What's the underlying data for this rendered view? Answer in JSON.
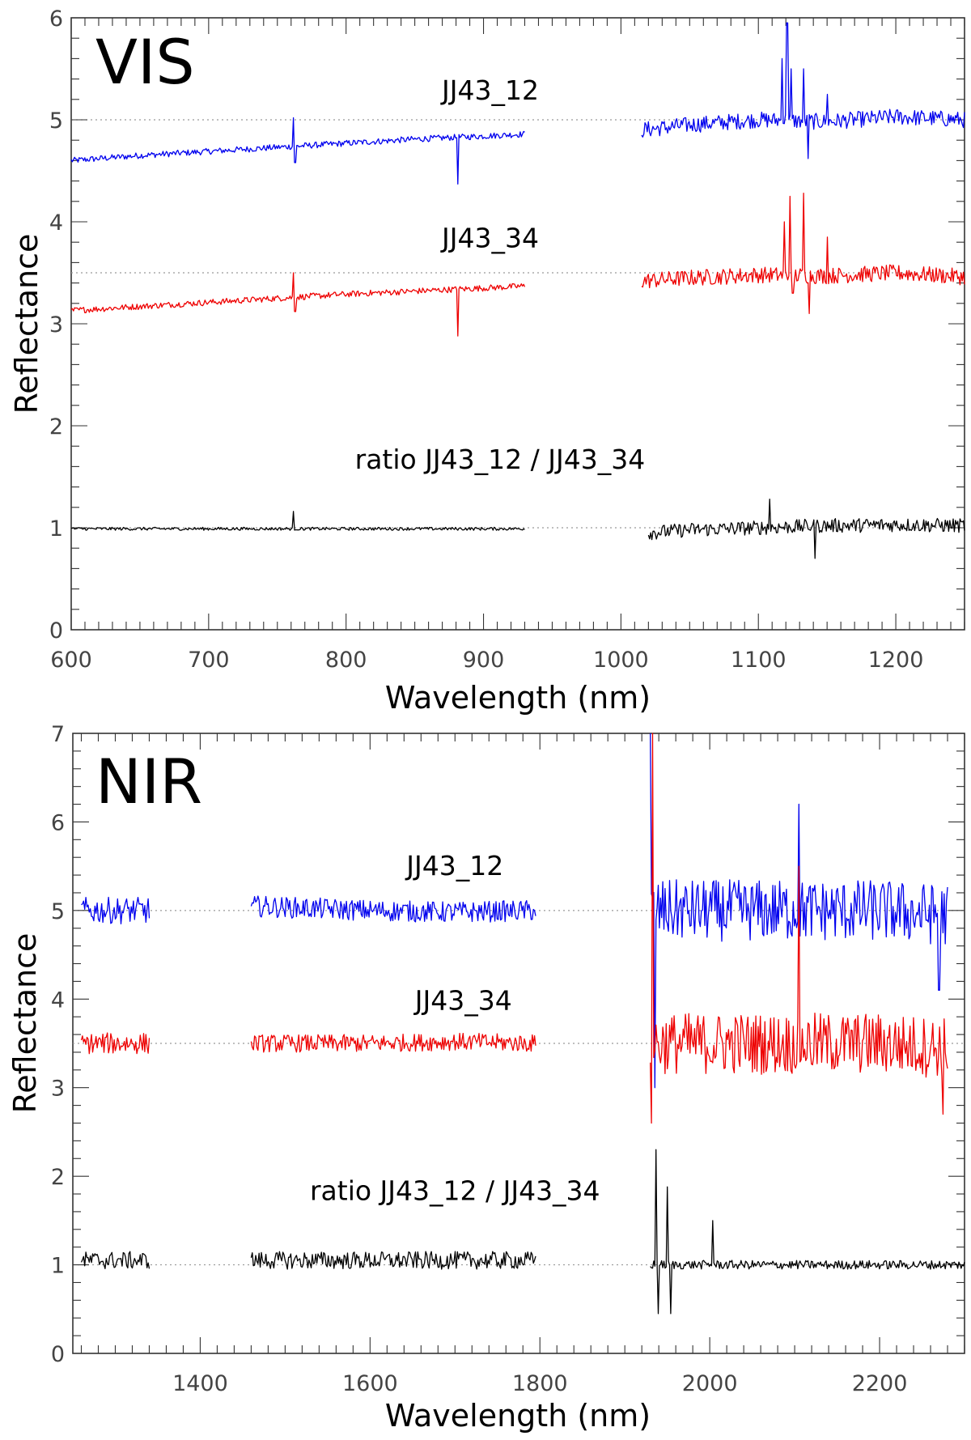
{
  "chart_data": [
    {
      "type": "line",
      "panel_label": "VIS",
      "xlabel": "Wavelength (nm)",
      "ylabel": "Reflectance",
      "xlim": [
        600,
        1250
      ],
      "ylim": [
        0,
        6
      ],
      "x_ticks": [
        600,
        700,
        800,
        900,
        1000,
        1100,
        1200
      ],
      "y_ticks": [
        0,
        1,
        2,
        3,
        4,
        5,
        6
      ],
      "reference_lines": [
        1,
        3.5,
        5
      ],
      "grid": false,
      "series": [
        {
          "name": "JJ43_12",
          "color": "#0000ee",
          "segments": [
            {
              "x": [
                600,
                650,
                700,
                750,
                800,
                850,
                900,
                930
              ],
              "y": [
                4.6,
                4.65,
                4.69,
                4.73,
                4.77,
                4.81,
                4.84,
                4.86
              ],
              "noise": 0.03
            },
            {
              "x": [
                1015,
                1050,
                1100,
                1150,
                1200,
                1250
              ],
              "y": [
                4.9,
                4.95,
                5.0,
                4.98,
                5.03,
                5.0
              ],
              "noise": 0.08
            }
          ],
          "spikes": [
            {
              "x": 762,
              "y": 5.02
            },
            {
              "x": 763,
              "y": 4.58
            },
            {
              "x": 881,
              "y": 4.37
            },
            {
              "x": 1117,
              "y": 5.6
            },
            {
              "x": 1121,
              "y": 5.95
            },
            {
              "x": 1124,
              "y": 5.5
            },
            {
              "x": 1133,
              "y": 5.5
            },
            {
              "x": 1136,
              "y": 4.62
            },
            {
              "x": 1150,
              "y": 5.25
            }
          ]
        },
        {
          "name": "JJ43_34",
          "color": "#ee0000",
          "segments": [
            {
              "x": [
                600,
                650,
                700,
                750,
                800,
                850,
                900,
                930
              ],
              "y": [
                3.13,
                3.17,
                3.21,
                3.25,
                3.29,
                3.32,
                3.35,
                3.37
              ],
              "noise": 0.03
            },
            {
              "x": [
                1015,
                1050,
                1100,
                1150,
                1200,
                1250
              ],
              "y": [
                3.42,
                3.45,
                3.48,
                3.47,
                3.5,
                3.46
              ],
              "noise": 0.08
            }
          ],
          "spikes": [
            {
              "x": 762,
              "y": 3.5
            },
            {
              "x": 763,
              "y": 3.12
            },
            {
              "x": 881,
              "y": 2.88
            },
            {
              "x": 1119,
              "y": 4.0
            },
            {
              "x": 1123,
              "y": 4.25
            },
            {
              "x": 1125,
              "y": 3.3
            },
            {
              "x": 1133,
              "y": 4.28
            },
            {
              "x": 1137,
              "y": 3.1
            },
            {
              "x": 1150,
              "y": 3.85
            }
          ]
        },
        {
          "name": "ratio JJ43_12 / JJ43_34",
          "color": "#000000",
          "segments": [
            {
              "x": [
                600,
                700,
                800,
                900,
                930
              ],
              "y": [
                0.99,
                0.99,
                0.99,
                0.99,
                0.99
              ],
              "noise": 0.015
            },
            {
              "x": [
                1020,
                1050,
                1100,
                1150,
                1200,
                1250
              ],
              "y": [
                0.95,
                0.98,
                1.0,
                1.02,
                1.03,
                1.02
              ],
              "noise": 0.07
            }
          ],
          "spikes": [
            {
              "x": 762,
              "y": 1.16
            },
            {
              "x": 1141,
              "y": 0.7
            },
            {
              "x": 1108,
              "y": 1.28
            }
          ]
        }
      ],
      "annotations": [
        {
          "text": "JJ43_12",
          "x": 905,
          "y": 5.2
        },
        {
          "text": "JJ43_34",
          "x": 905,
          "y": 3.75
        },
        {
          "text": "ratio JJ43_12 / JJ43_34",
          "x": 912,
          "y": 1.58
        }
      ]
    },
    {
      "type": "line",
      "panel_label": "NIR",
      "xlabel": "Wavelength (nm)",
      "ylabel": "Reflectance",
      "xlim": [
        1250,
        2300
      ],
      "ylim": [
        0,
        7
      ],
      "x_ticks": [
        1400,
        1600,
        1800,
        2000,
        2200
      ],
      "y_ticks": [
        0,
        1,
        2,
        3,
        4,
        5,
        6,
        7
      ],
      "reference_lines": [
        1,
        3.5,
        5
      ],
      "grid": false,
      "series": [
        {
          "name": "JJ43_12",
          "color": "#0000ee",
          "segments": [
            {
              "x": [
                1260,
                1300,
                1340
              ],
              "y": [
                5.0,
                5.0,
                5.0
              ],
              "noise": 0.15
            },
            {
              "x": [
                1460,
                1600,
                1700,
                1795
              ],
              "y": [
                5.05,
                5.0,
                4.98,
                5.0
              ],
              "noise": 0.12
            },
            {
              "x": [
                1930,
                2000,
                2100,
                2200,
                2280
              ],
              "y": [
                5.0,
                5.0,
                5.0,
                5.0,
                4.95
              ],
              "noise": 0.35
            }
          ],
          "spikes": [
            {
              "x": 1930,
              "y": 7.0
            },
            {
              "x": 1935,
              "y": 3.0
            },
            {
              "x": 2105,
              "y": 6.2
            },
            {
              "x": 2270,
              "y": 4.1
            }
          ]
        },
        {
          "name": "JJ43_34",
          "color": "#ee0000",
          "segments": [
            {
              "x": [
                1260,
                1300,
                1340
              ],
              "y": [
                3.5,
                3.5,
                3.5
              ],
              "noise": 0.12
            },
            {
              "x": [
                1460,
                1600,
                1700,
                1795
              ],
              "y": [
                3.5,
                3.5,
                3.52,
                3.5
              ],
              "noise": 0.1
            },
            {
              "x": [
                1930,
                2000,
                2100,
                2200,
                2280
              ],
              "y": [
                3.5,
                3.5,
                3.5,
                3.5,
                3.45
              ],
              "noise": 0.35
            }
          ],
          "spikes": [
            {
              "x": 1933,
              "y": 7.0
            },
            {
              "x": 1931,
              "y": 2.6
            },
            {
              "x": 2105,
              "y": 5.5
            },
            {
              "x": 2275,
              "y": 2.7
            }
          ]
        },
        {
          "name": "ratio JJ43_12 / JJ43_34",
          "color": "#000000",
          "segments": [
            {
              "x": [
                1260,
                1300,
                1340
              ],
              "y": [
                1.05,
                1.05,
                1.05
              ],
              "noise": 0.1
            },
            {
              "x": [
                1460,
                1600,
                1700,
                1795
              ],
              "y": [
                1.05,
                1.05,
                1.05,
                1.05
              ],
              "noise": 0.1
            },
            {
              "x": [
                1930,
                1960,
                2000,
                2050,
                2100,
                2200,
                2300
              ],
              "y": [
                1.0,
                1.0,
                1.0,
                1.0,
                1.0,
                1.0,
                1.0
              ],
              "noise": 0.05
            }
          ],
          "spikes": [
            {
              "x": 1937,
              "y": 2.3
            },
            {
              "x": 1939,
              "y": 0.45
            },
            {
              "x": 1950,
              "y": 1.88
            },
            {
              "x": 1954,
              "y": 0.45
            },
            {
              "x": 2003,
              "y": 1.5
            }
          ]
        }
      ],
      "annotations": [
        {
          "text": "JJ43_12",
          "x": 1700,
          "y": 5.4
        },
        {
          "text": "JJ43_34",
          "x": 1710,
          "y": 3.88
        },
        {
          "text": "ratio JJ43_12 / JJ43_34",
          "x": 1700,
          "y": 1.73
        }
      ]
    }
  ]
}
